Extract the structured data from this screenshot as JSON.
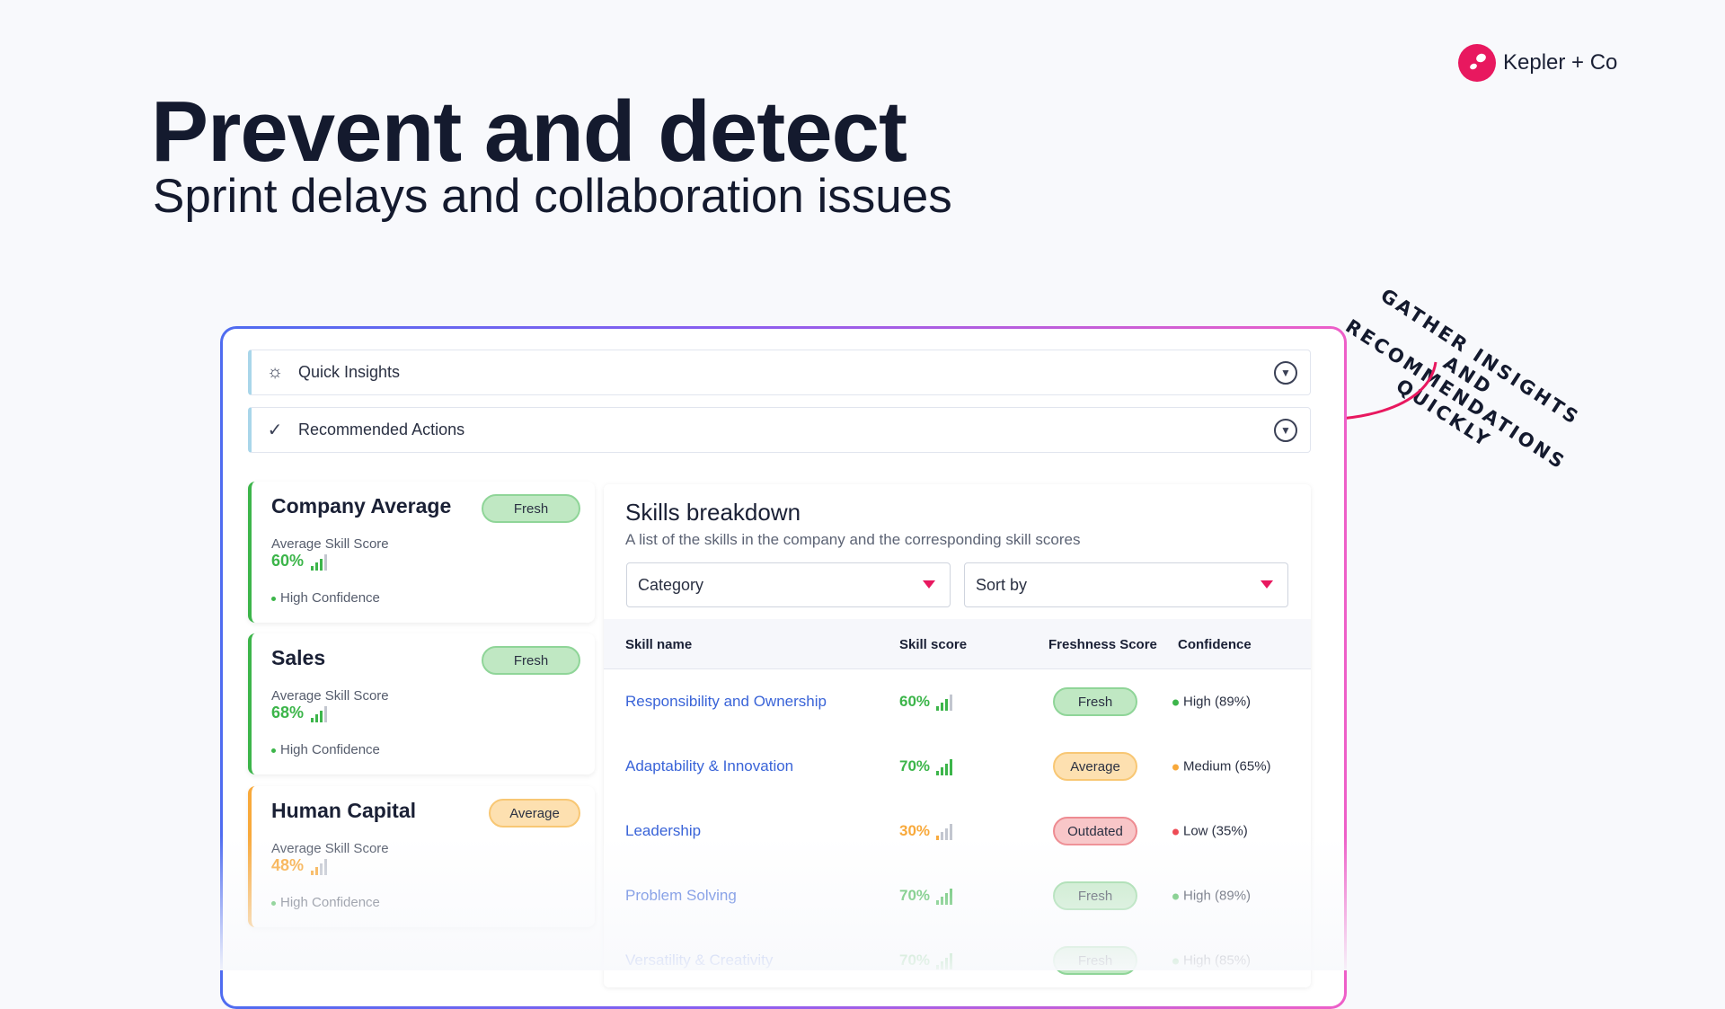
{
  "brand": {
    "name": "Kepler + Co",
    "color": "#e8185f"
  },
  "hero": {
    "title": "Prevent and detect",
    "subtitle": "Sprint delays and collaboration issues"
  },
  "annotation": {
    "text": "Gather insights and recommendations quickly"
  },
  "accordions": [
    {
      "label": "Quick Insights",
      "icon": "lightbulb-icon"
    },
    {
      "label": "Recommended Actions",
      "icon": "check-circle-icon"
    }
  ],
  "cards": [
    {
      "title": "Company Average",
      "badge": "Fresh",
      "badge_type": "fresh",
      "score_label": "Average Skill Score",
      "score": "60%",
      "level": 3,
      "confidence": "High Confidence",
      "color": "#3cb54a"
    },
    {
      "title": "Sales",
      "badge": "Fresh",
      "badge_type": "fresh",
      "score_label": "Average Skill Score",
      "score": "68%",
      "level": 3,
      "confidence": "High Confidence",
      "color": "#3cb54a"
    },
    {
      "title": "Human Capital",
      "badge": "Average",
      "badge_type": "avg",
      "score_label": "Average Skill Score",
      "score": "48%",
      "level": 2,
      "confidence": "High Confidence",
      "color": "#f8a93b"
    }
  ],
  "skills": {
    "title": "Skills breakdown",
    "subtitle": "A list of the skills in the company and the corresponding skill scores",
    "filters": {
      "category": "Category",
      "sort": "Sort by"
    },
    "columns": [
      "Skill name",
      "Skill score",
      "Freshness Score",
      "Confidence"
    ],
    "rows": [
      {
        "name": "Responsibility and Ownership",
        "score": "60%",
        "level": 3,
        "score_color": "#3cb54a",
        "freshness": "Fresh",
        "fresh_type": "fresh",
        "confidence": "High (89%)",
        "conf_color": "#3cb54a"
      },
      {
        "name": "Adaptability & Innovation",
        "score": "70%",
        "level": 4,
        "score_color": "#3cb54a",
        "freshness": "Average",
        "fresh_type": "avg",
        "confidence": "Medium (65%)",
        "conf_color": "#f8a93b"
      },
      {
        "name": "Leadership",
        "score": "30%",
        "level": 1,
        "score_color": "#f8a93b",
        "freshness": "Outdated",
        "fresh_type": "out",
        "confidence": "Low (35%)",
        "conf_color": "#ee4b55"
      },
      {
        "name": "Problem Solving",
        "score": "70%",
        "level": 4,
        "score_color": "#3cb54a",
        "freshness": "Fresh",
        "fresh_type": "fresh",
        "confidence": "High (89%)",
        "conf_color": "#3cb54a"
      },
      {
        "name": "Versatility & Creativity",
        "score": "70%",
        "level": 4,
        "score_color": "#3cb54a",
        "freshness": "Fresh",
        "fresh_type": "fresh",
        "confidence": "High (85%)",
        "conf_color": "#3cb54a"
      }
    ]
  }
}
